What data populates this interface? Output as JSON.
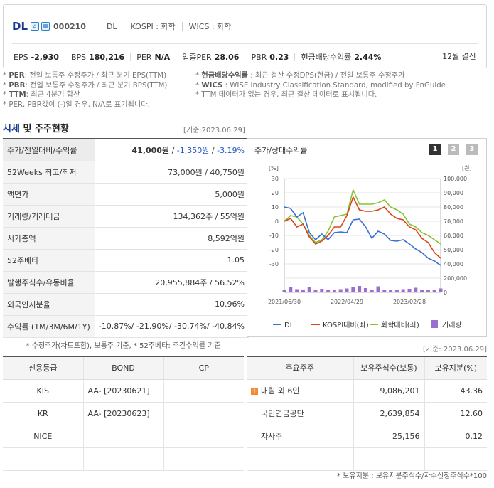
{
  "header": {
    "name": "DL",
    "code": "000210",
    "ticker": "DL",
    "kospi": "KOSPI : 화학",
    "wics": "WICS : 화학",
    "stats": [
      {
        "label": "EPS",
        "value": "-2,930"
      },
      {
        "label": "BPS",
        "value": "180,216"
      },
      {
        "label": "PER",
        "value": "N/A"
      },
      {
        "label": "업종PER",
        "value": "28.06"
      },
      {
        "label": "PBR",
        "value": "0.23"
      },
      {
        "label": "현금배당수익률",
        "value": "2.44%"
      }
    ],
    "fiscal": "12월 결산"
  },
  "notes": {
    "left": [
      [
        "PER",
        ": 전일 보통주 수정주가 / 최근 분기 EPS(TTM)"
      ],
      [
        "PBR",
        ": 전일 보통주 수정주가 / 최근 분기 BPS(TTM)"
      ],
      [
        "TTM",
        ": 최근 4분기 합산"
      ],
      [
        "",
        "PER, PBR값이 (-)일 경우, N/A로 표기됩니다."
      ]
    ],
    "right": [
      [
        "현금배당수익률",
        " : 최근 결산 수정DPS(현금) / 전일 보통주 수정주가"
      ],
      [
        "WICS",
        " : WISE Industry Classification Standard, modified by FnGuide"
      ],
      [
        "",
        "TTM 데이터가 없는 경우, 최근 결산 데이터로 표시됩니다."
      ]
    ]
  },
  "market": {
    "title_blue": "시세",
    "title_rest": " 및 주주현황",
    "date": "[기준:2023.06.29]",
    "rows": [
      {
        "label": "주가/전일대비/수익률",
        "v1": "41,000원",
        "v2": "-1,350원",
        "v3": "-3.19%"
      },
      {
        "label": "52Weeks 최고/최저",
        "value": "73,000원 / 40,750원"
      },
      {
        "label": "액면가",
        "value": "5,000원"
      },
      {
        "label": "거래량/거래대금",
        "value": "134,362주 / 55억원"
      },
      {
        "label": "시가총액",
        "value": "8,592억원"
      },
      {
        "label": "52주베타",
        "value": "1.05"
      },
      {
        "label": "발행주식수/유동비율",
        "value": "20,955,884주 / 56.52%"
      },
      {
        "label": "외국인지분율",
        "value": "10.96%"
      },
      {
        "label": "수익률 (1M/3M/6M/1Y)",
        "value": "-10.87%/ -21.90%/ -30.74%/ -40.84%"
      }
    ],
    "note": "* 수정주가(차트포함), 보통주 기준, * 52주베타: 주간수익률 기준"
  },
  "chart_data": {
    "type": "line",
    "title": "주가/상대수익률",
    "pages": [
      "1",
      "2",
      "3"
    ],
    "left_unit": "[%]",
    "right_unit": "[원]",
    "y_left_ticks": [
      "30",
      "20",
      "10",
      "0",
      "-10",
      "-20",
      "-30"
    ],
    "y_left_range": [
      -30,
      30
    ],
    "y_right_ticks": [
      "100,000",
      "90,000",
      "80,000",
      "70,000",
      "60,000",
      "50,000",
      "40,000"
    ],
    "y_right_range": [
      40000,
      100000
    ],
    "volume_ticks": [
      "200,000",
      "0"
    ],
    "volume_range": [
      0,
      200000
    ],
    "x_tick_labels": [
      "2021/06/30",
      "2022/04/29",
      "2023/02/28"
    ],
    "x_tick_index": [
      0,
      10,
      20
    ],
    "legend": [
      "DL",
      "KOSPI대비(좌)",
      "화학대비(좌)",
      "거래량"
    ],
    "colors": {
      "dl": "#3a6fd4",
      "kospi": "#d9451c",
      "chem": "#86c232",
      "vol": "#9b6fd0"
    },
    "series": [
      {
        "name": "DL",
        "axis": "right",
        "values": [
          80000,
          79000,
          73000,
          76000,
          62000,
          57000,
          61000,
          57000,
          62000,
          62500,
          62000,
          71000,
          71500,
          66000,
          58000,
          63000,
          61000,
          56500,
          56000,
          57000,
          54000,
          50500,
          48000,
          44000,
          42000,
          39000
        ]
      },
      {
        "name": "KOSPI대비(좌)",
        "axis": "left",
        "values": [
          0,
          2,
          -4,
          -2,
          -11,
          -16,
          -14,
          -10,
          -4,
          -4,
          4,
          17,
          8,
          7,
          7,
          8,
          10,
          5,
          2,
          1,
          -4,
          -6,
          -12,
          -15,
          -22,
          -26
        ]
      },
      {
        "name": "화학대비(좌)",
        "axis": "left",
        "values": [
          0,
          4,
          3,
          -2,
          -10,
          -15,
          -13,
          -7,
          3,
          4,
          5,
          22,
          12,
          12,
          12,
          13,
          15,
          10,
          8,
          5,
          -2,
          -4,
          -8,
          -10,
          -13,
          -16
        ]
      },
      {
        "name": "거래량",
        "axis": "volume",
        "values": [
          40000,
          70000,
          45000,
          35000,
          80000,
          30000,
          50000,
          40000,
          35000,
          45000,
          55000,
          70000,
          90000,
          60000,
          40000,
          85000,
          30000,
          35000,
          40000,
          45000,
          50000,
          65000,
          40000,
          40000,
          35000,
          55000
        ]
      }
    ]
  },
  "credit": {
    "headers": [
      "신용등급",
      "BOND",
      "CP"
    ],
    "rows": [
      [
        "KIS",
        "AA-   [20230621]",
        ""
      ],
      [
        "KR",
        "AA-   [20230623]",
        ""
      ],
      [
        "NICE",
        "",
        ""
      ],
      [
        "",
        "",
        ""
      ]
    ]
  },
  "holders": {
    "date": "[기준: 2023.06.29]",
    "headers": [
      "주요주주",
      "보유주식수(보통)",
      "보유지분(%)"
    ],
    "rows": [
      {
        "name": "대림 외 6인",
        "shares": "9,086,201",
        "pct": "43.36",
        "expand": true
      },
      {
        "name": "국민연금공단",
        "shares": "2,639,854",
        "pct": "12.60",
        "expand": false
      },
      {
        "name": "자사주",
        "shares": "25,156",
        "pct": "0.12",
        "expand": false
      },
      {
        "name": "",
        "shares": "",
        "pct": "",
        "expand": false
      }
    ],
    "expand_icon": "+",
    "footnote": "* 보유지분 : 보유지분주식수/자수신정주식수*100"
  }
}
